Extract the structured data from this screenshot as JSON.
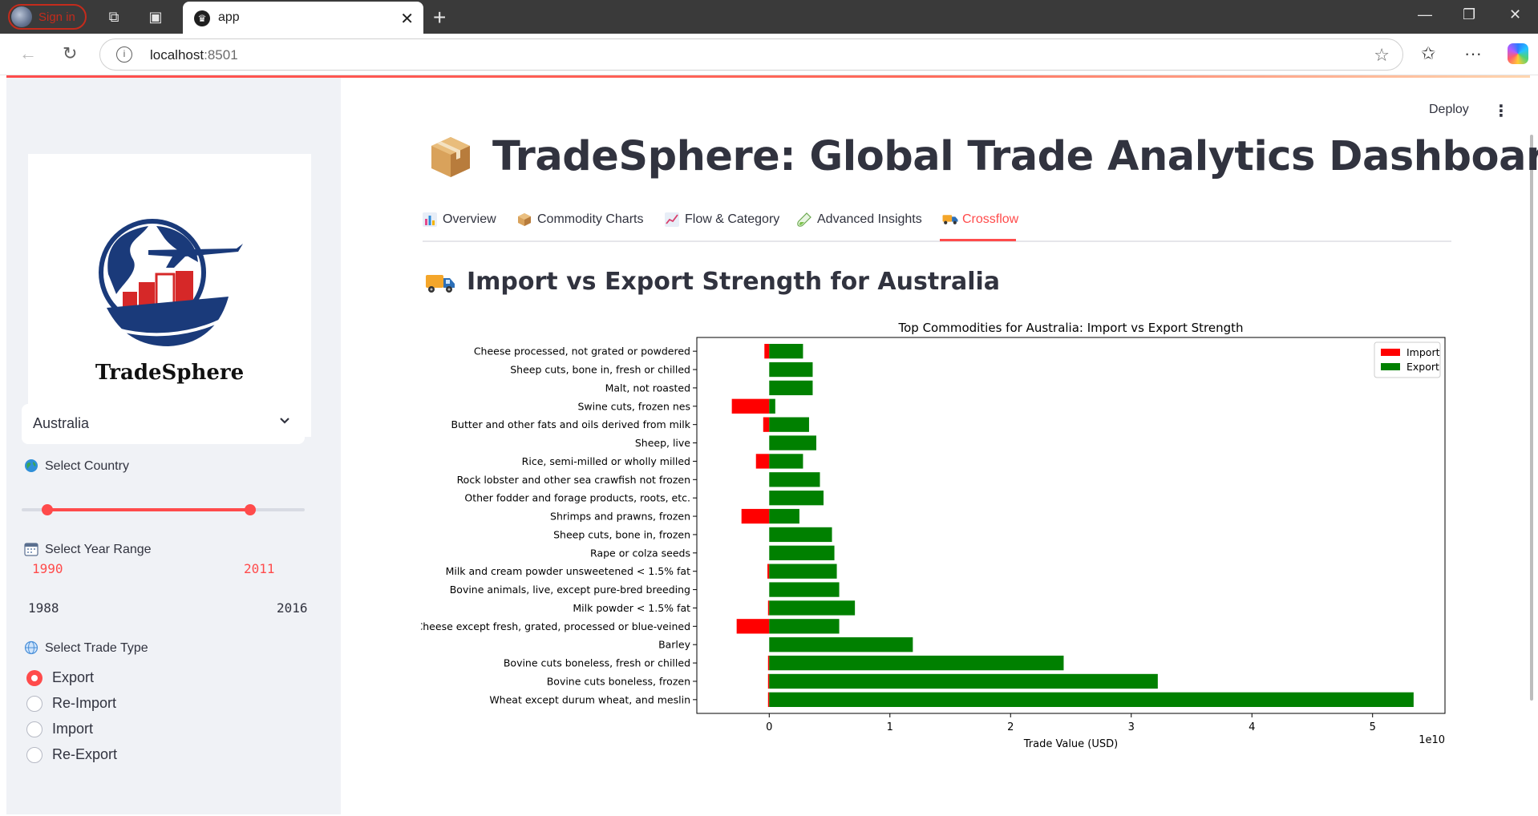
{
  "browser": {
    "signin_label": "Sign in",
    "tab_title": "app",
    "url_host": "localhost",
    "url_port": ":8501"
  },
  "header": {
    "deploy_label": "Deploy"
  },
  "sidebar": {
    "logo_text": "TradeSphere",
    "country": {
      "label": "Select Country",
      "value": "Australia",
      "icon": "globe-icon"
    },
    "year_range": {
      "label": "Select Year Range",
      "icon": "calendar-icon",
      "selected_start": "1990",
      "selected_end": "2011",
      "min": "1988",
      "max": "2016",
      "start_fraction": 0.0714,
      "end_fraction": 0.8214
    },
    "trade_type": {
      "label": "Select Trade Type",
      "icon": "network-globe-icon",
      "options": [
        "Export",
        "Re-Import",
        "Import",
        "Re-Export"
      ],
      "selected": "Export"
    }
  },
  "main": {
    "title": "TradeSphere: Global Trade Analytics Dashboard",
    "title_icon": "package-icon",
    "tabs": [
      {
        "label": "Overview",
        "icon": "bar-chart-icon"
      },
      {
        "label": "Commodity Charts",
        "icon": "box-icon"
      },
      {
        "label": "Flow & Category",
        "icon": "trend-chart-icon"
      },
      {
        "label": "Advanced Insights",
        "icon": "test-tube-icon"
      },
      {
        "label": "Crossflow",
        "icon": "truck-icon"
      }
    ],
    "active_tab": "Crossflow",
    "subheader": "Import vs Export Strength for Australia",
    "subheader_icon": "truck-icon"
  },
  "colors": {
    "accent": "#ff4b4b",
    "import": "#ff0000",
    "export": "#008000"
  },
  "chart_data": {
    "type": "bar",
    "orientation": "horizontal",
    "title": "Top Commodities for Australia: Import vs Export Strength",
    "xlabel": "Trade Value (USD)",
    "ylabel": "",
    "x_scale_label": "1e10",
    "xlim": [
      -0.6,
      5.6
    ],
    "xticks": [
      0,
      1,
      2,
      3,
      4,
      5
    ],
    "legend": {
      "position": "top-right",
      "entries": [
        "Import",
        "Export"
      ]
    },
    "grid": false,
    "categories": [
      "Cheese processed, not grated or powdered",
      "Sheep cuts, bone in, fresh or chilled",
      "Malt, not roasted",
      "Swine cuts, frozen nes",
      "Butter and other fats and oils derived from milk",
      "Sheep, live",
      "Rice, semi-milled or wholly milled",
      "Rock lobster and other sea crawfish not frozen",
      "Other fodder and forage products, roots, etc.",
      "Shrimps and prawns, frozen",
      "Sheep cuts, bone in, frozen",
      "Rape or colza seeds",
      "Milk and cream powder unsweetened < 1.5% fat",
      "Bovine animals, live, except pure-bred breeding",
      "Milk powder < 1.5% fat",
      "Cheese except fresh, grated, processed or blue-veined",
      "Barley",
      "Bovine cuts boneless, fresh or chilled",
      "Bovine cuts boneless, frozen",
      "Wheat except durum wheat, and meslin"
    ],
    "series": [
      {
        "name": "Import",
        "values": [
          -0.04,
          0,
          0,
          -0.31,
          -0.05,
          0,
          -0.11,
          0,
          0,
          -0.23,
          0,
          0,
          -0.015,
          0,
          -0.01,
          -0.27,
          0,
          -0.01,
          -0.01,
          -0.01
        ]
      },
      {
        "name": "Export",
        "values": [
          0.28,
          0.36,
          0.36,
          0.05,
          0.33,
          0.39,
          0.28,
          0.42,
          0.45,
          0.25,
          0.52,
          0.54,
          0.56,
          0.58,
          0.71,
          0.58,
          1.19,
          2.44,
          3.22,
          5.34
        ]
      }
    ]
  }
}
